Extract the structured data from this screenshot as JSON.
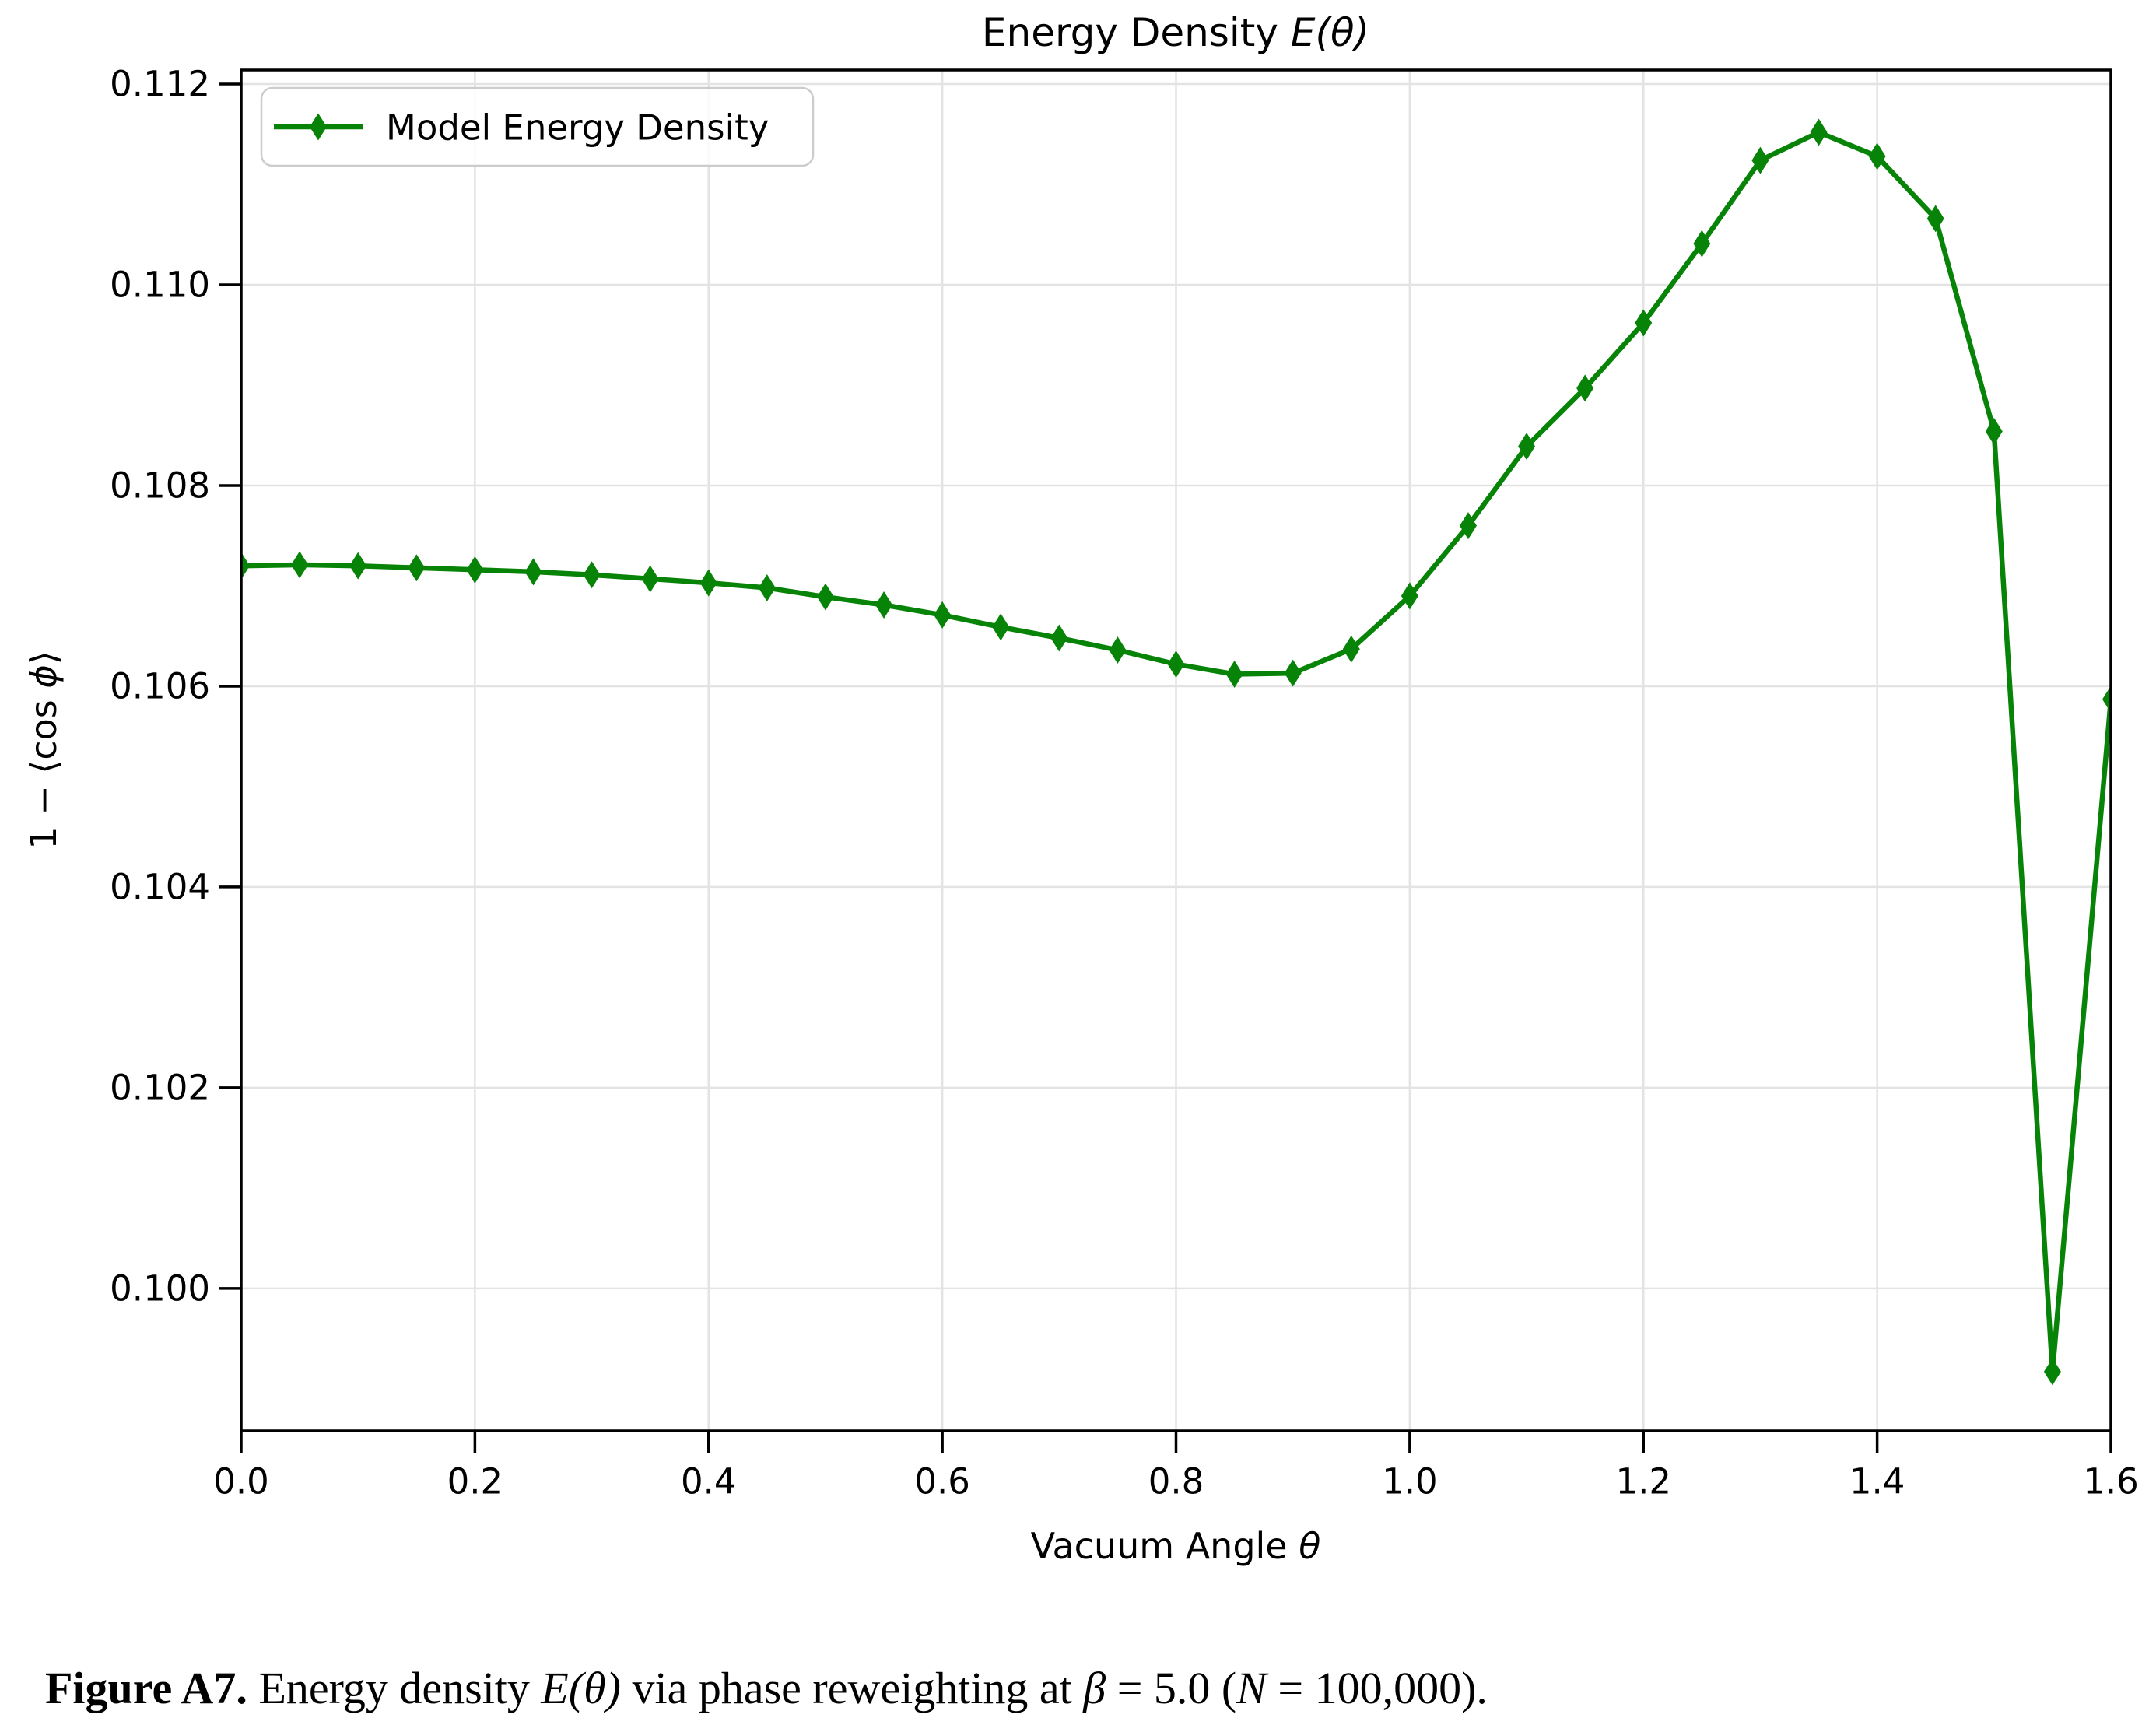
{
  "chart_data": {
    "type": "line",
    "title": "Energy Density E(θ)",
    "title_prefix": "Energy Density ",
    "title_math": "E(θ)",
    "xlabel": "Vacuum Angle θ",
    "xlabel_prefix": "Vacuum Angle ",
    "xlabel_math": "θ",
    "ylabel": "1 − ⟨cos ϕ⟩",
    "ylabel_prefix": "1 − ⟨cos ",
    "ylabel_math": "ϕ",
    "ylabel_suffix": "⟩",
    "grid": true,
    "legend_position": "upper left",
    "xlim": [
      0.0,
      1.6
    ],
    "ylim": [
      0.09858,
      0.11214
    ],
    "xticks": [
      0.0,
      0.2,
      0.4,
      0.6,
      0.8,
      1.0,
      1.2,
      1.4,
      1.6
    ],
    "yticks": [
      0.1,
      0.102,
      0.104,
      0.106,
      0.108,
      0.11,
      0.112
    ],
    "grid_color": "#e3e3e3",
    "axis_color": "#000000",
    "series": [
      {
        "name": "Model Energy Density",
        "color": "#078407",
        "marker": "thin-diamond",
        "x": [
          0.0,
          0.05,
          0.1,
          0.15,
          0.2,
          0.25,
          0.3,
          0.35,
          0.4,
          0.45,
          0.5,
          0.55,
          0.6,
          0.65,
          0.7,
          0.75,
          0.8,
          0.85,
          0.9,
          0.95,
          1.0,
          1.05,
          1.1,
          1.15,
          1.2,
          1.25,
          1.3,
          1.35,
          1.4,
          1.45,
          1.5,
          1.55,
          1.6
        ],
        "y": [
          0.1072,
          0.10721,
          0.1072,
          0.10718,
          0.10716,
          0.10714,
          0.10711,
          0.10707,
          0.10703,
          0.10698,
          0.10689,
          0.10681,
          0.10671,
          0.10659,
          0.10648,
          0.10636,
          0.10622,
          0.10612,
          0.10613,
          0.10637,
          0.1069,
          0.1076,
          0.10839,
          0.10897,
          0.10962,
          0.11041,
          0.11124,
          0.11152,
          0.11128,
          0.11066,
          0.10854,
          0.09917,
          0.10587
        ]
      }
    ]
  },
  "legend": {
    "label": "Model Energy Density"
  },
  "caption": {
    "label": "Figure A7.",
    "text_1": " Energy density ",
    "math_e": "E(θ)",
    "text_2": " via phase reweighting at ",
    "math_beta": "β",
    "text_3": " = 5.0 (",
    "math_n": "N",
    "text_4": " = 100,000)."
  }
}
